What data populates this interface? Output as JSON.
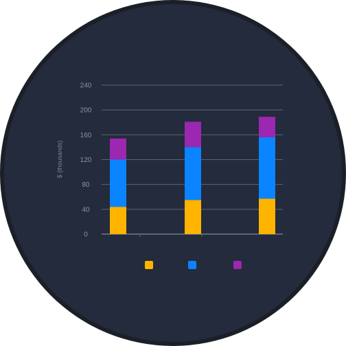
{
  "chart_data": {
    "type": "bar",
    "stacked": true,
    "categories": [
      "",
      "",
      ""
    ],
    "series": [
      {
        "color": "#ffb400",
        "values": [
          44,
          55,
          57
        ]
      },
      {
        "color": "#0a84ff",
        "values": [
          76,
          85,
          99
        ]
      },
      {
        "color": "#9c27b0",
        "values": [
          34,
          41,
          33
        ]
      }
    ],
    "ylabel": "$ (thousands)",
    "ylim": [
      0,
      240
    ],
    "yticks": [
      0,
      40,
      80,
      120,
      160,
      200,
      240
    ],
    "grid": true,
    "legend_position": "bottom"
  }
}
